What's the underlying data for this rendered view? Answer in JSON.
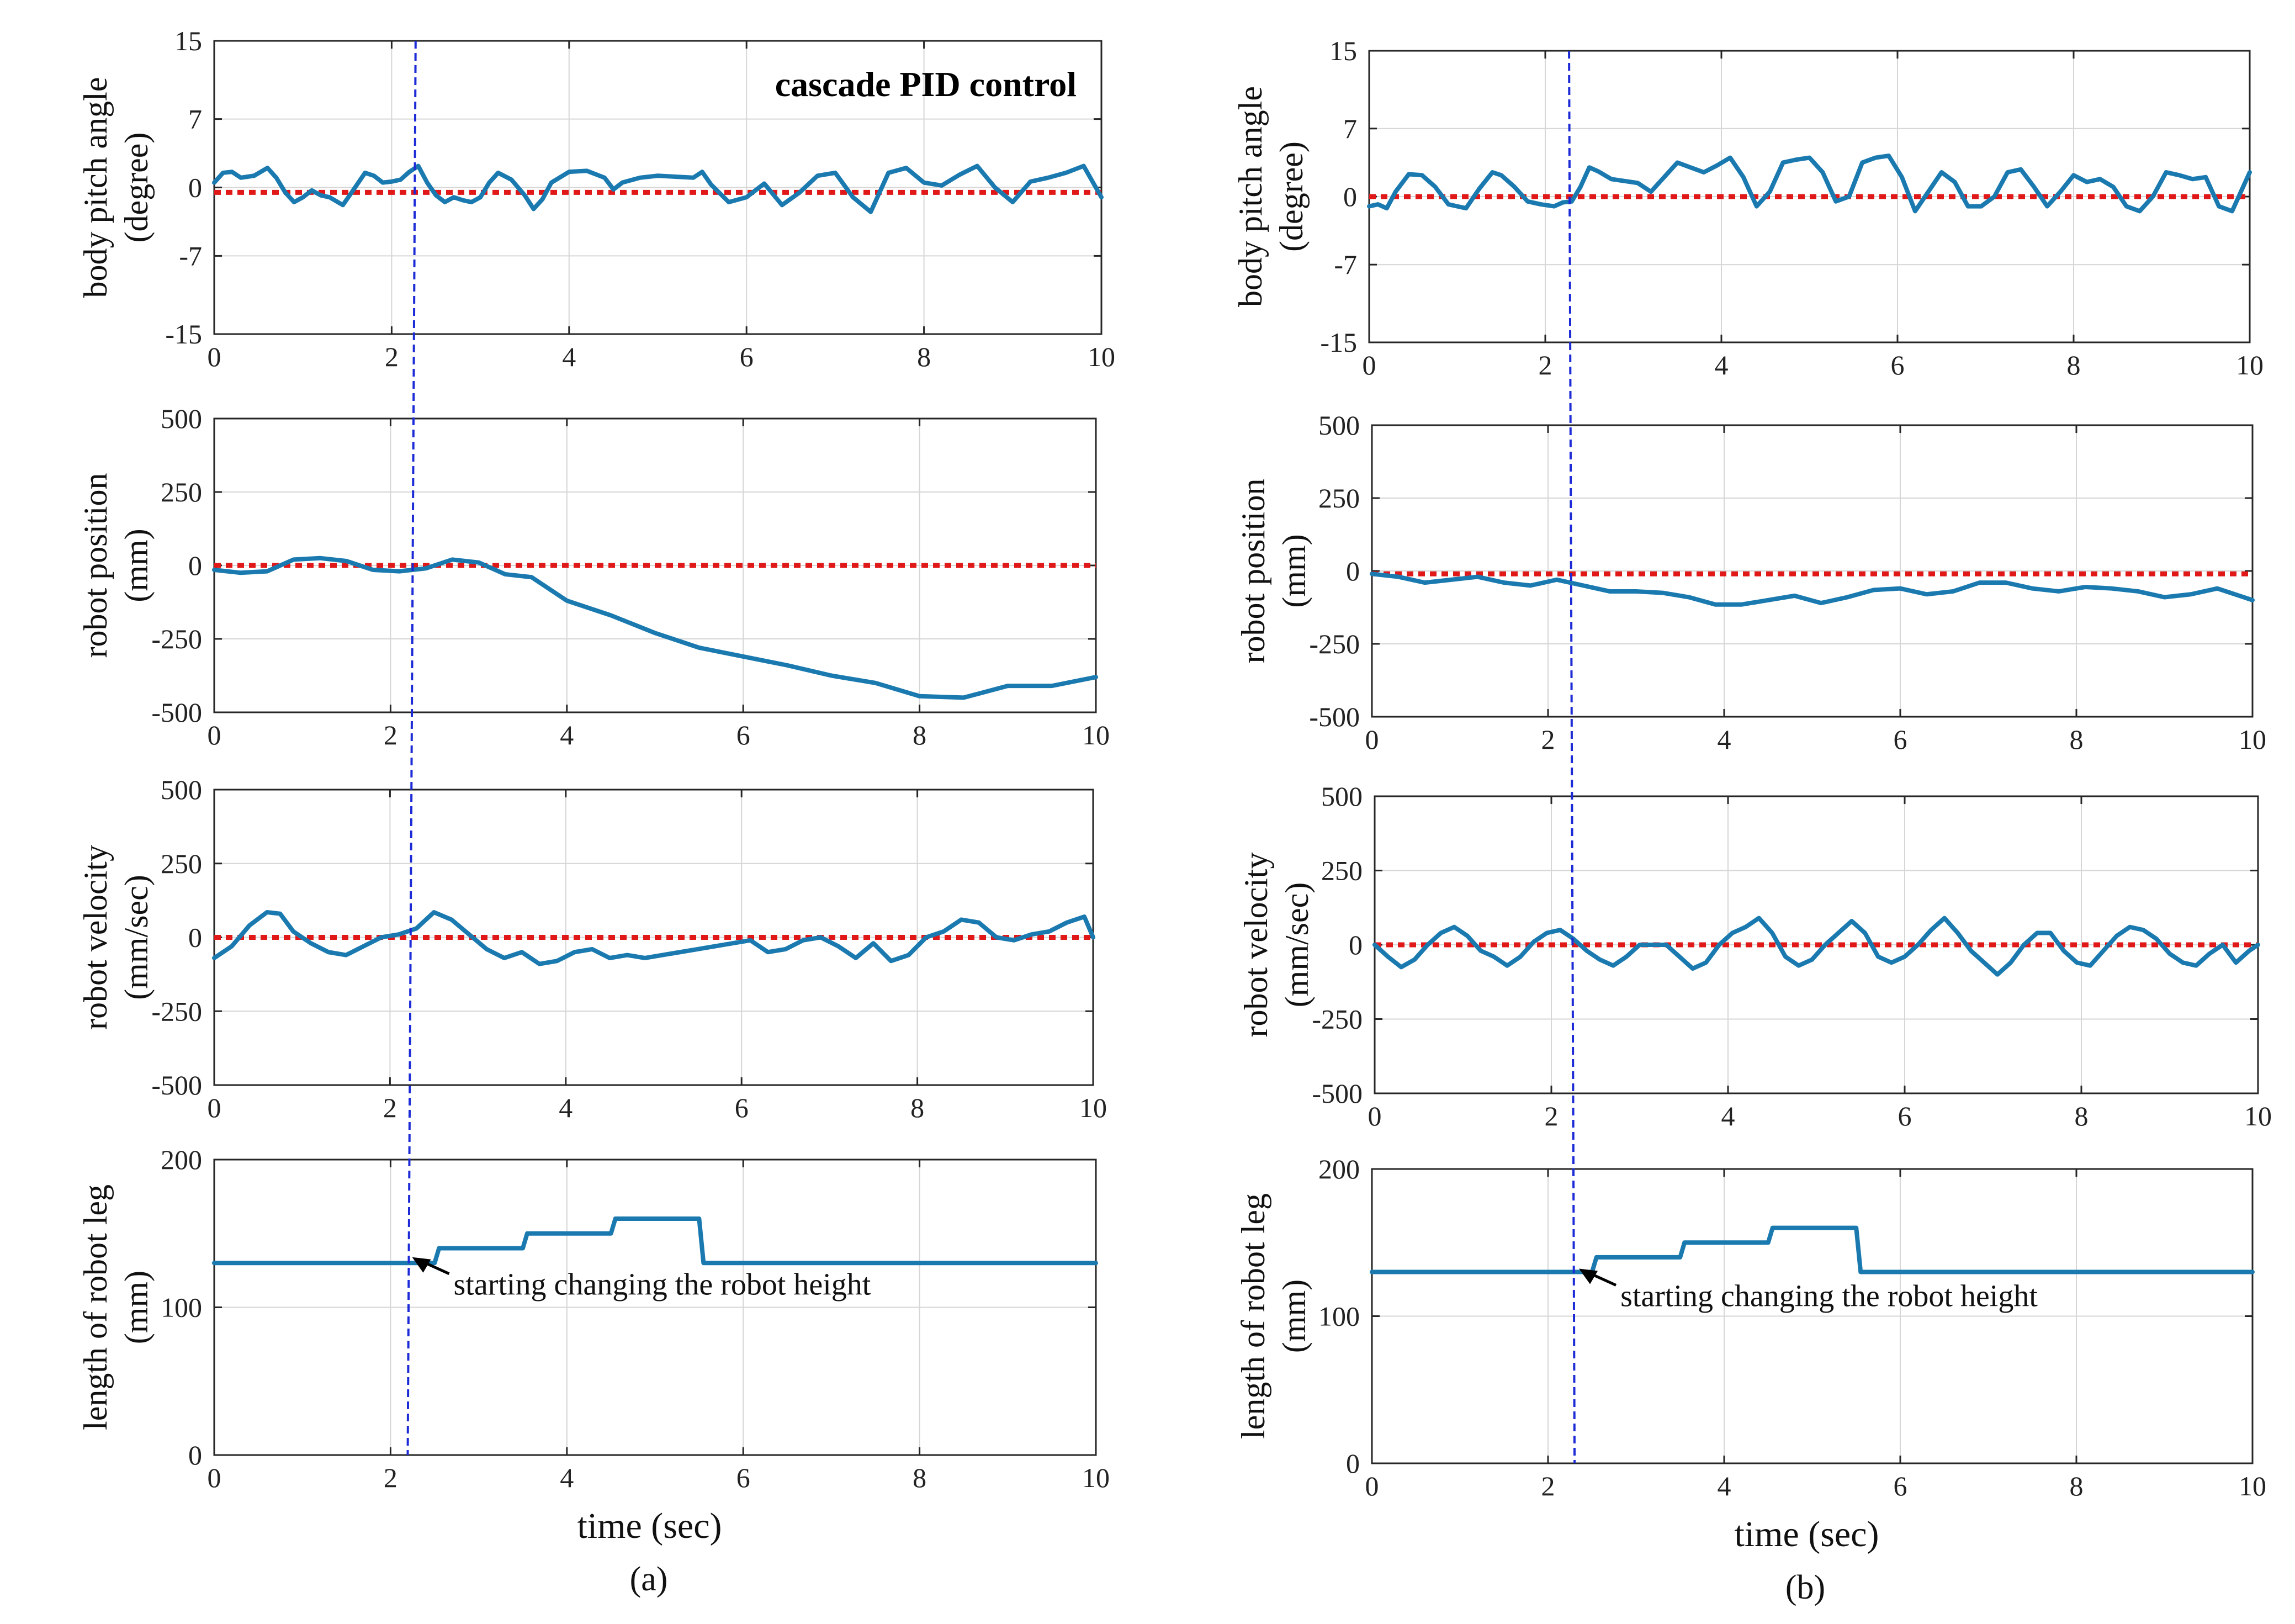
{
  "colors": {
    "signal": "#1a7ab0",
    "reference": "#e01818",
    "marker": "#1c2bd6",
    "axis": "#262626",
    "grid": "#d6d6d6"
  },
  "figure": {
    "panel_labels": [
      "(a)",
      "(b)"
    ],
    "xlabel": "time (sec)",
    "subplot_title": "cascade PID control",
    "annotation": "starting changing the robot height",
    "marker_time": 2.27
  },
  "chart_data": [
    {
      "type": "line",
      "column": "a",
      "row": 0,
      "title": "cascade PID control",
      "ylabel_lines": [
        "body pitch angle",
        "(degree)"
      ],
      "xlabel": "",
      "xlim": [
        0,
        10
      ],
      "ylim": [
        -15,
        15
      ],
      "xticks": [
        0,
        2,
        4,
        6,
        8,
        10
      ],
      "yticks": [
        15,
        7,
        0,
        -7,
        -15
      ],
      "grid": true,
      "reference": {
        "x": [
          0,
          10
        ],
        "y": [
          -0.5,
          -0.5
        ]
      },
      "series": [
        {
          "x": [
            0,
            0.1,
            0.2,
            0.3,
            0.45,
            0.6,
            0.7,
            0.8,
            0.9,
            1.0,
            1.1,
            1.2,
            1.3,
            1.45,
            1.55,
            1.7,
            1.8,
            1.9,
            2.0,
            2.1,
            2.2,
            2.3,
            2.4,
            2.5,
            2.6,
            2.7,
            2.8,
            2.9,
            3.0,
            3.1,
            3.2,
            3.35,
            3.5,
            3.6,
            3.7,
            3.8,
            4.0,
            4.2,
            4.4,
            4.5,
            4.6,
            4.8,
            5.0,
            5.2,
            5.4,
            5.5,
            5.6,
            5.8,
            6.0,
            6.2,
            6.4,
            6.6,
            6.8,
            7.0,
            7.2,
            7.4,
            7.6,
            7.8,
            8.0,
            8.2,
            8.4,
            8.6,
            8.8,
            9.0,
            9.2,
            9.4,
            9.6,
            9.8,
            10.0
          ],
          "y": [
            0.5,
            1.5,
            1.6,
            1.0,
            1.2,
            2.0,
            1.0,
            -0.5,
            -1.5,
            -1.0,
            -0.3,
            -0.8,
            -1.0,
            -1.8,
            -0.5,
            1.5,
            1.2,
            0.5,
            0.6,
            0.8,
            1.6,
            2.2,
            0.5,
            -0.8,
            -1.5,
            -1.0,
            -1.3,
            -1.5,
            -1.0,
            0.5,
            1.5,
            0.8,
            -0.8,
            -2.2,
            -1.2,
            0.5,
            1.6,
            1.7,
            1.0,
            -0.2,
            0.5,
            1.0,
            1.2,
            1.1,
            1.0,
            1.6,
            0.3,
            -1.5,
            -1.0,
            0.4,
            -1.8,
            -0.5,
            1.2,
            1.5,
            -1.0,
            -2.5,
            1.5,
            2.0,
            0.5,
            0.2,
            1.3,
            2.2,
            0.0,
            -1.5,
            0.6,
            1.0,
            1.5,
            2.2,
            -1.0
          ]
        }
      ]
    },
    {
      "type": "line",
      "column": "a",
      "row": 1,
      "ylabel_lines": [
        "robot position",
        "(mm)"
      ],
      "xlabel": "",
      "xlim": [
        0,
        10
      ],
      "ylim": [
        -500,
        500
      ],
      "xticks": [
        0,
        2,
        4,
        6,
        8,
        10
      ],
      "yticks": [
        500,
        250,
        0,
        -250,
        -500
      ],
      "grid": true,
      "reference": {
        "x": [
          0,
          10
        ],
        "y": [
          0,
          0
        ]
      },
      "series": [
        {
          "x": [
            0,
            0.3,
            0.6,
            0.9,
            1.2,
            1.5,
            1.8,
            2.1,
            2.4,
            2.7,
            3.0,
            3.3,
            3.6,
            4.0,
            4.5,
            5.0,
            5.5,
            6.0,
            6.5,
            7.0,
            7.5,
            8.0,
            8.5,
            9.0,
            9.5,
            10.0
          ],
          "y": [
            -15,
            -25,
            -20,
            20,
            25,
            15,
            -15,
            -20,
            -10,
            20,
            10,
            -30,
            -40,
            -120,
            -170,
            -230,
            -280,
            -310,
            -340,
            -375,
            -400,
            -445,
            -450,
            -410,
            -410,
            -380
          ]
        }
      ]
    },
    {
      "type": "line",
      "column": "a",
      "row": 2,
      "ylabel_lines": [
        "robot velocity",
        "(mm/sec)"
      ],
      "xlabel": "",
      "xlim": [
        0,
        10
      ],
      "ylim": [
        -500,
        500
      ],
      "xticks": [
        0,
        2,
        4,
        6,
        8,
        10
      ],
      "yticks": [
        500,
        250,
        0,
        -250,
        -500
      ],
      "grid": true,
      "reference": {
        "x": [
          0,
          10
        ],
        "y": [
          0,
          0
        ]
      },
      "series": [
        {
          "x": [
            0,
            0.2,
            0.4,
            0.6,
            0.75,
            0.9,
            1.1,
            1.3,
            1.5,
            1.7,
            1.9,
            2.1,
            2.3,
            2.5,
            2.7,
            2.9,
            3.1,
            3.3,
            3.5,
            3.7,
            3.9,
            4.1,
            4.3,
            4.5,
            4.7,
            4.9,
            5.1,
            5.3,
            5.5,
            5.7,
            5.9,
            6.1,
            6.3,
            6.5,
            6.7,
            6.9,
            7.1,
            7.3,
            7.5,
            7.7,
            7.9,
            8.1,
            8.3,
            8.5,
            8.7,
            8.9,
            9.1,
            9.3,
            9.5,
            9.7,
            9.9,
            10.0
          ],
          "y": [
            -70,
            -30,
            40,
            85,
            80,
            20,
            -20,
            -50,
            -60,
            -30,
            0,
            10,
            30,
            85,
            60,
            10,
            -40,
            -70,
            -50,
            -90,
            -80,
            -50,
            -40,
            -70,
            -60,
            -70,
            -60,
            -50,
            -40,
            -30,
            -20,
            -10,
            -50,
            -40,
            -10,
            0,
            -30,
            -70,
            -20,
            -80,
            -60,
            0,
            20,
            60,
            50,
            0,
            -10,
            10,
            20,
            50,
            70,
            0
          ]
        }
      ]
    },
    {
      "type": "line",
      "column": "a",
      "row": 3,
      "ylabel_lines": [
        "length of robot leg",
        "(mm)"
      ],
      "xlabel": "time (sec)",
      "xlim": [
        0,
        10
      ],
      "ylim": [
        0,
        200
      ],
      "xticks": [
        0,
        2,
        4,
        6,
        8,
        10
      ],
      "yticks": [
        200,
        100,
        0
      ],
      "grid": true,
      "annotation": "starting changing the robot height",
      "series": [
        {
          "x": [
            0,
            2.5,
            2.55,
            3.5,
            3.55,
            4.5,
            4.55,
            5.5,
            5.55,
            10.0
          ],
          "y": [
            130,
            130,
            140,
            140,
            150,
            150,
            160,
            160,
            130,
            130
          ]
        }
      ]
    },
    {
      "type": "line",
      "column": "b",
      "row": 0,
      "ylabel_lines": [
        "body pitch angle",
        "(degree)"
      ],
      "xlabel": "",
      "xlim": [
        0,
        10
      ],
      "ylim": [
        -15,
        15
      ],
      "xticks": [
        0,
        2,
        4,
        6,
        8,
        10
      ],
      "yticks": [
        15,
        7,
        0,
        -7,
        -15
      ],
      "grid": true,
      "reference": {
        "x": [
          0,
          10
        ],
        "y": [
          0,
          0
        ]
      },
      "series": [
        {
          "x": [
            0,
            0.1,
            0.2,
            0.3,
            0.45,
            0.6,
            0.75,
            0.9,
            1.0,
            1.1,
            1.25,
            1.4,
            1.5,
            1.65,
            1.8,
            1.95,
            2.1,
            2.2,
            2.3,
            2.4,
            2.5,
            2.6,
            2.75,
            2.9,
            3.05,
            3.2,
            3.35,
            3.5,
            3.65,
            3.8,
            3.95,
            4.1,
            4.25,
            4.4,
            4.55,
            4.7,
            4.85,
            5.0,
            5.15,
            5.3,
            5.45,
            5.6,
            5.75,
            5.9,
            6.05,
            6.2,
            6.35,
            6.5,
            6.65,
            6.8,
            6.95,
            7.1,
            7.25,
            7.4,
            7.55,
            7.7,
            7.85,
            8.0,
            8.15,
            8.3,
            8.45,
            8.6,
            8.75,
            8.9,
            9.05,
            9.2,
            9.35,
            9.5,
            9.65,
            9.8,
            10.0
          ],
          "y": [
            -1.0,
            -0.8,
            -1.2,
            0.5,
            2.3,
            2.2,
            1.0,
            -0.8,
            -1.0,
            -1.2,
            0.8,
            2.5,
            2.2,
            1.0,
            -0.5,
            -0.8,
            -1.0,
            -0.6,
            -0.5,
            1.0,
            3.0,
            2.6,
            1.8,
            1.6,
            1.4,
            0.5,
            2.0,
            3.5,
            3.0,
            2.5,
            3.2,
            4.0,
            2.0,
            -1.0,
            0.5,
            3.5,
            3.8,
            4.0,
            2.5,
            -0.5,
            0.0,
            3.5,
            4.0,
            4.2,
            2.0,
            -1.5,
            0.5,
            2.5,
            1.5,
            -1.0,
            -1.0,
            0.0,
            2.5,
            2.8,
            1.0,
            -1.0,
            0.5,
            2.2,
            1.5,
            1.8,
            1.0,
            -1.0,
            -1.5,
            0.0,
            2.5,
            2.2,
            1.8,
            2.0,
            -1.0,
            -1.5,
            2.5
          ]
        }
      ]
    },
    {
      "type": "line",
      "column": "b",
      "row": 1,
      "ylabel_lines": [
        "robot position",
        "(mm)"
      ],
      "xlabel": "",
      "xlim": [
        0,
        10
      ],
      "ylim": [
        -500,
        500
      ],
      "xticks": [
        0,
        2,
        4,
        6,
        8,
        10
      ],
      "yticks": [
        500,
        250,
        0,
        -250,
        -500
      ],
      "grid": true,
      "reference": {
        "x": [
          0,
          10
        ],
        "y": [
          -10,
          -10
        ]
      },
      "series": [
        {
          "x": [
            0,
            0.3,
            0.6,
            0.9,
            1.2,
            1.5,
            1.8,
            2.1,
            2.4,
            2.7,
            3.0,
            3.3,
            3.6,
            3.9,
            4.2,
            4.5,
            4.8,
            5.1,
            5.4,
            5.7,
            6.0,
            6.3,
            6.6,
            6.9,
            7.2,
            7.5,
            7.8,
            8.1,
            8.4,
            8.7,
            9.0,
            9.3,
            9.6,
            10.0
          ],
          "y": [
            -10,
            -20,
            -40,
            -30,
            -20,
            -40,
            -50,
            -30,
            -50,
            -70,
            -70,
            -75,
            -90,
            -115,
            -115,
            -100,
            -85,
            -110,
            -90,
            -65,
            -60,
            -80,
            -70,
            -40,
            -40,
            -60,
            -70,
            -55,
            -60,
            -70,
            -90,
            -80,
            -60,
            -100
          ]
        }
      ]
    },
    {
      "type": "line",
      "column": "b",
      "row": 2,
      "ylabel_lines": [
        "robot velocity",
        "(mm/sec)"
      ],
      "xlabel": "",
      "xlim": [
        0,
        10
      ],
      "ylim": [
        -500,
        500
      ],
      "xticks": [
        0,
        2,
        4,
        6,
        8,
        10
      ],
      "yticks": [
        500,
        250,
        0,
        -250,
        -500
      ],
      "grid": true,
      "reference": {
        "x": [
          0,
          10
        ],
        "y": [
          0,
          0
        ]
      },
      "series": [
        {
          "x": [
            0,
            0.15,
            0.3,
            0.45,
            0.6,
            0.75,
            0.9,
            1.05,
            1.2,
            1.35,
            1.5,
            1.65,
            1.8,
            1.95,
            2.1,
            2.25,
            2.4,
            2.55,
            2.7,
            2.85,
            3.0,
            3.15,
            3.3,
            3.45,
            3.6,
            3.75,
            3.9,
            4.05,
            4.2,
            4.35,
            4.5,
            4.65,
            4.8,
            4.95,
            5.1,
            5.25,
            5.4,
            5.55,
            5.7,
            5.85,
            6.0,
            6.15,
            6.3,
            6.45,
            6.6,
            6.75,
            6.9,
            7.05,
            7.2,
            7.35,
            7.5,
            7.65,
            7.8,
            7.95,
            8.1,
            8.25,
            8.4,
            8.55,
            8.7,
            8.85,
            9.0,
            9.15,
            9.3,
            9.45,
            9.6,
            9.75,
            9.9,
            10.0
          ],
          "y": [
            0,
            -40,
            -75,
            -50,
            0,
            40,
            60,
            30,
            -20,
            -40,
            -70,
            -40,
            10,
            40,
            50,
            20,
            -20,
            -50,
            -70,
            -40,
            0,
            0,
            0,
            -40,
            -80,
            -60,
            0,
            40,
            60,
            90,
            40,
            -40,
            -70,
            -50,
            0,
            40,
            80,
            40,
            -40,
            -60,
            -40,
            0,
            50,
            90,
            40,
            -20,
            -60,
            -100,
            -60,
            0,
            40,
            40,
            -20,
            -60,
            -70,
            -20,
            30,
            60,
            50,
            20,
            -30,
            -60,
            -70,
            -30,
            0,
            -60,
            -20,
            0
          ]
        }
      ]
    },
    {
      "type": "line",
      "column": "b",
      "row": 3,
      "ylabel_lines": [
        "length of robot leg",
        "(mm)"
      ],
      "xlabel": "time (sec)",
      "xlim": [
        0,
        10
      ],
      "ylim": [
        0,
        200
      ],
      "xticks": [
        0,
        2,
        4,
        6,
        8,
        10
      ],
      "yticks": [
        200,
        100,
        0
      ],
      "grid": true,
      "annotation": "starting changing the robot height",
      "series": [
        {
          "x": [
            0,
            2.5,
            2.55,
            3.5,
            3.55,
            4.5,
            4.55,
            5.5,
            5.55,
            10.0
          ],
          "y": [
            130,
            130,
            140,
            140,
            150,
            150,
            160,
            160,
            130,
            130
          ]
        }
      ]
    }
  ]
}
